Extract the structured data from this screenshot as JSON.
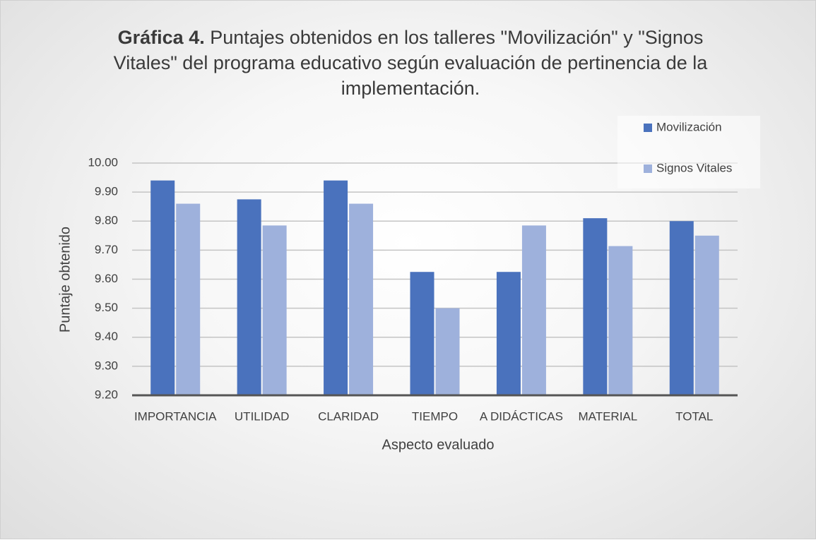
{
  "chart_data": {
    "type": "bar",
    "title": [
      "Gráfica 4.",
      "Puntajes obtenidos en los talleres \"Movilización\" y \"Signos Vitales\" del programa educativo según evaluación de pertinencia de la implementación."
    ],
    "x_label": "Aspecto evaluado",
    "y_label": "Puntaje obtenido",
    "categories": [
      "IMPORTANCIA",
      "UTILIDAD",
      "CLARIDAD",
      "TIEMPO",
      "A DIDÁCTICAS",
      "MATERIAL",
      "TOTAL"
    ],
    "series": [
      {
        "name": "Movilización",
        "color": "#4a72bd",
        "values": [
          9.94,
          9.875,
          9.94,
          9.625,
          9.625,
          9.81,
          9.8
        ]
      },
      {
        "name": "Signos Vitales",
        "color": "#9eb1dc",
        "values": [
          9.86,
          9.785,
          9.86,
          9.5,
          9.785,
          9.714,
          9.75
        ]
      }
    ],
    "ylim": [
      9.2,
      10.0
    ],
    "yticks": [
      {
        "value": 9.2,
        "label": "9.20"
      },
      {
        "value": 9.3,
        "label": "9.30"
      },
      {
        "value": 9.4,
        "label": "9.40"
      },
      {
        "value": 9.5,
        "label": "9.50"
      },
      {
        "value": 9.6,
        "label": "9.60"
      },
      {
        "value": 9.7,
        "label": "9.70"
      },
      {
        "value": 9.8,
        "label": "9.80"
      },
      {
        "value": 9.9,
        "label": "9.90"
      },
      {
        "value": 10.0,
        "label": "10.00"
      }
    ],
    "grid": true,
    "legend": "top-right"
  }
}
